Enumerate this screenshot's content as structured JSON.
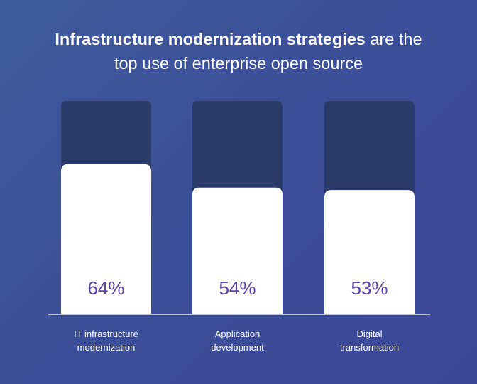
{
  "title": {
    "bold_part": "Infrastructure modernization strategies",
    "regular_part": " are the",
    "line2": "top use of enterprise open source"
  },
  "colors": {
    "background": "#3d4f99",
    "bar_track": "#2c3a6a",
    "bar_fill": "#ffffff",
    "value_text": "#5a44a6"
  },
  "chart_data": {
    "type": "bar",
    "title": "Infrastructure modernization strategies are the top use of enterprise open source",
    "categories": [
      [
        "IT infrastructure",
        "modernization"
      ],
      [
        "Application",
        "development"
      ],
      [
        "Digital",
        "transformation"
      ]
    ],
    "values": [
      64,
      54,
      53
    ],
    "value_labels": [
      "64%",
      "54%",
      "53%"
    ],
    "unit": "%",
    "ylim": [
      0,
      100
    ],
    "grid": false,
    "legend": "none"
  }
}
